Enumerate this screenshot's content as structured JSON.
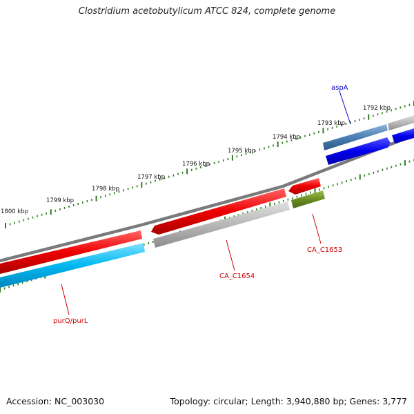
{
  "title": "Clostridium acetobutylicum ATCC 824, complete genome",
  "footer": {
    "accession": "Accession: NC_003030",
    "summary": "Topology: circular; Length: 3,940,880 bp; Genes: 3,777"
  },
  "colors": {
    "backbone": "#808080",
    "tick": "#2e7d1e",
    "label_red": "#cc0000",
    "label_blue": "#0000cc"
  },
  "ticks": [
    {
      "label": "1792 kbp"
    },
    {
      "label": "1793 kbp"
    },
    {
      "label": "1794 kbp"
    },
    {
      "label": "1795 kbp"
    },
    {
      "label": "1796 kbp"
    },
    {
      "label": "1797 kbp"
    },
    {
      "label": "1798 kbp"
    },
    {
      "label": "1799 kbp"
    },
    {
      "label": "1800 kbp"
    }
  ],
  "genes": [
    {
      "label": "aspA",
      "color": "#0000ee",
      "label_color": "#0000cc"
    },
    {
      "label": "CA_C1653",
      "color": "#6b8e23",
      "label_color": "#cc0000"
    },
    {
      "label": "CA_C1654",
      "color": "#b0b0b0",
      "label_color": "#cc0000"
    },
    {
      "label": "purQ/purL",
      "color": "#00bfff",
      "label_color": "#cc0000"
    }
  ]
}
